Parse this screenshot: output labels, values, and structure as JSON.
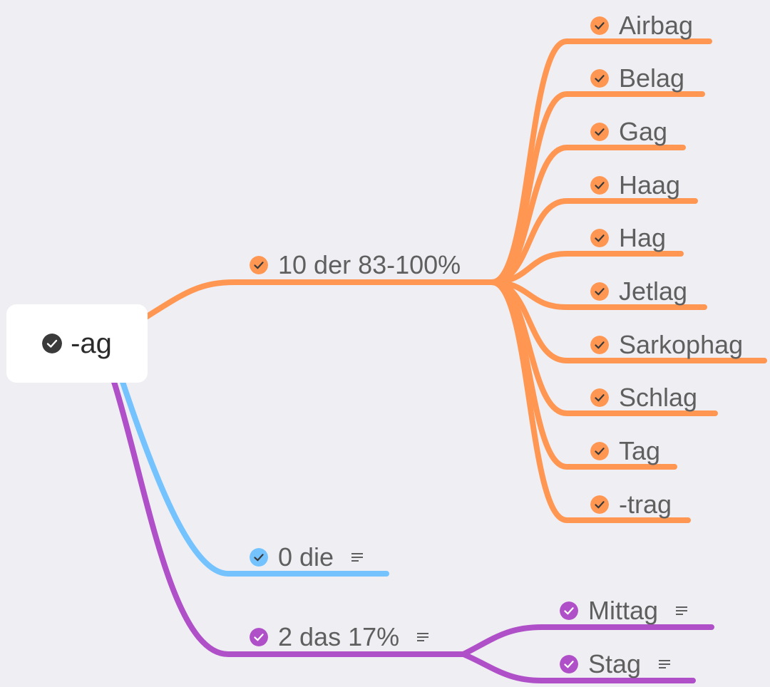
{
  "root": {
    "label": "-ag",
    "check_color": "#3a3a3a"
  },
  "colors": {
    "background": "#efeef3",
    "orange": "#ff9752",
    "blue": "#74c3ff",
    "purple": "#b050c8",
    "text": "#5f5f5f"
  },
  "icons": {
    "check": "check-circle-icon",
    "note": "note-lines-icon"
  },
  "branches": {
    "orange": {
      "label": "10 der 83-100%",
      "children": [
        {
          "label": "Airbag"
        },
        {
          "label": "Belag"
        },
        {
          "label": "Gag"
        },
        {
          "label": "Haag"
        },
        {
          "label": "Hag"
        },
        {
          "label": "Jetlag"
        },
        {
          "label": "Sarkophag"
        },
        {
          "label": "Schlag"
        },
        {
          "label": "Tag"
        },
        {
          "label": "-trag"
        }
      ]
    },
    "blue": {
      "label": "0 die",
      "has_note": true
    },
    "purple": {
      "label": "2 das 17%",
      "has_note": true,
      "children": [
        {
          "label": "Mittag",
          "has_note": true
        },
        {
          "label": "Stag",
          "has_note": true
        }
      ]
    }
  }
}
